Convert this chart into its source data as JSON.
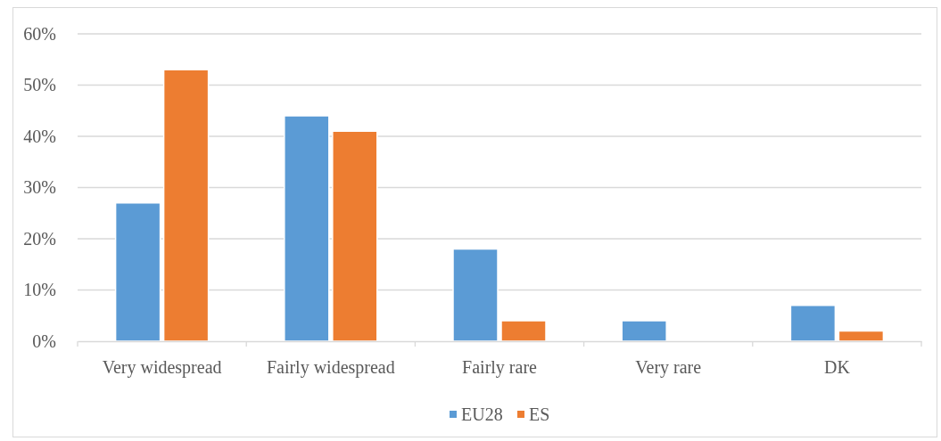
{
  "chart_data": {
    "type": "bar",
    "categories": [
      "Very widespread",
      "Fairly widespread",
      "Fairly rare",
      "Very rare",
      "DK"
    ],
    "series": [
      {
        "name": "EU28",
        "color": "#5b9bd5",
        "values": [
          27,
          44,
          18,
          4,
          7
        ]
      },
      {
        "name": "ES",
        "color": "#ed7d31",
        "values": [
          53,
          41,
          4,
          0,
          2
        ]
      }
    ],
    "ylim": [
      0,
      60
    ],
    "yticks": [
      {
        "value": 0,
        "label": "0%"
      },
      {
        "value": 10,
        "label": "10%"
      },
      {
        "value": 20,
        "label": "20%"
      },
      {
        "value": 30,
        "label": "30%"
      },
      {
        "value": 40,
        "label": "40%"
      },
      {
        "value": 50,
        "label": "50%"
      },
      {
        "value": 60,
        "label": "60%"
      }
    ],
    "grid": "y",
    "legend": "bottom"
  }
}
